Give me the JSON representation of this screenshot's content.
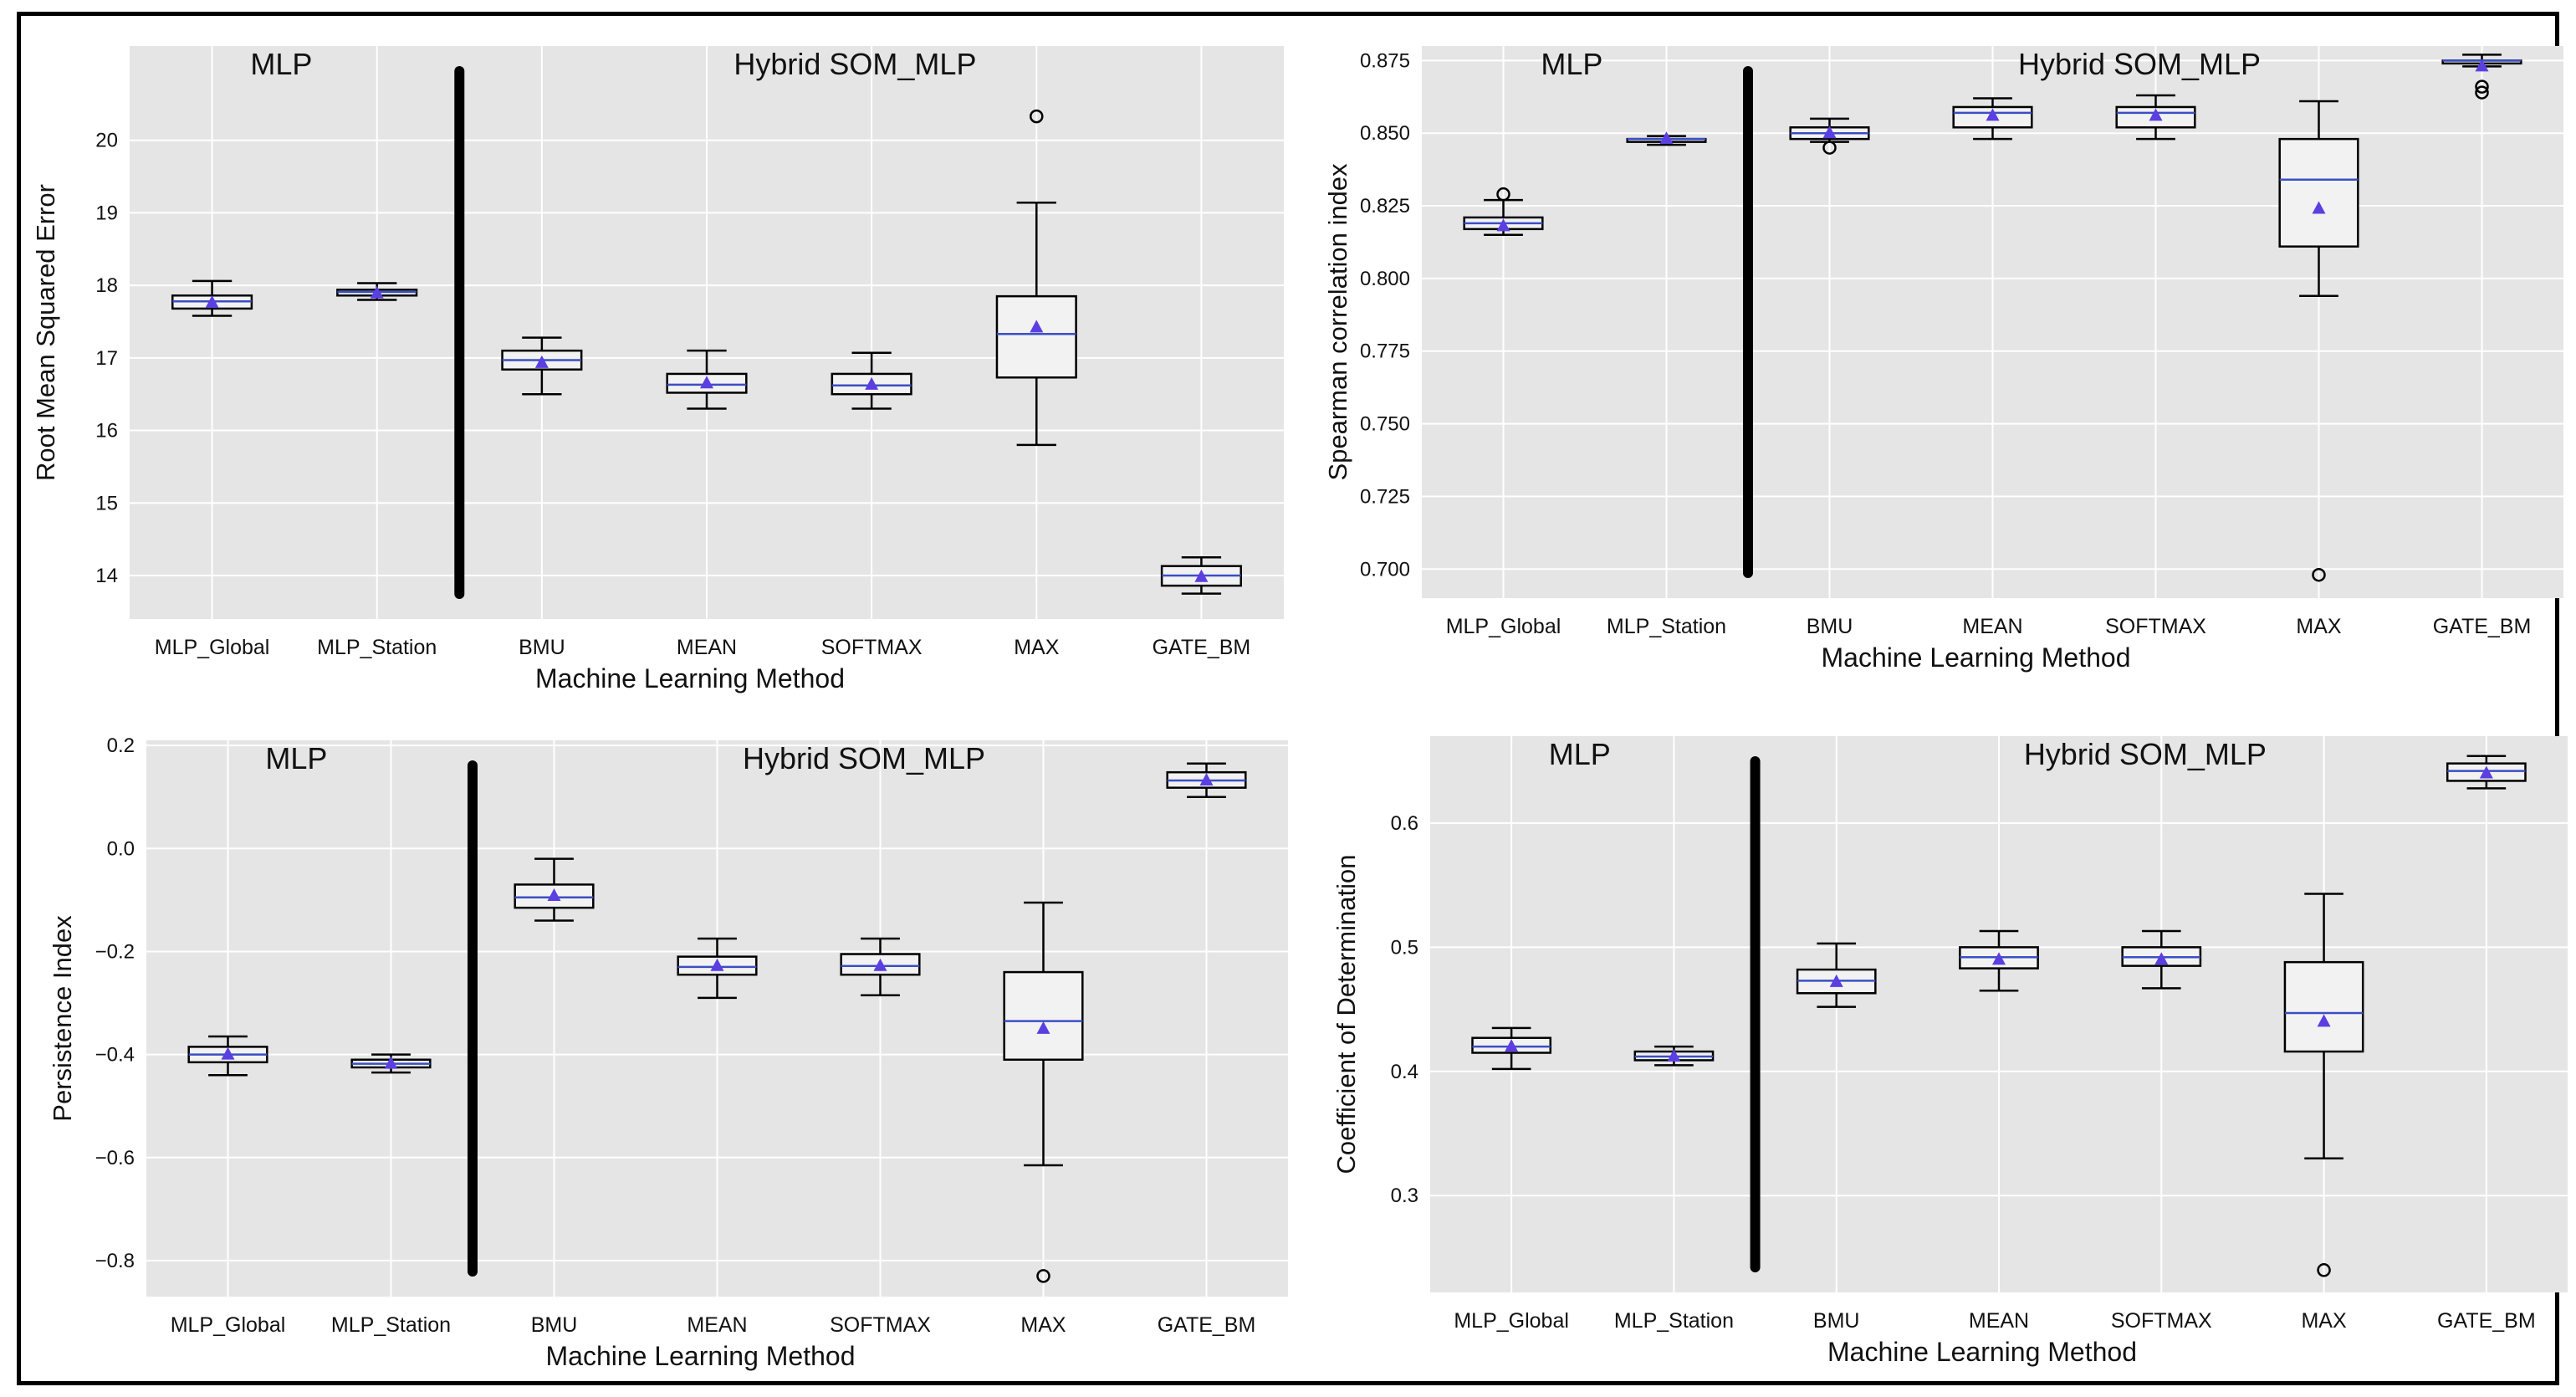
{
  "chart_data": [
    {
      "type": "box",
      "ylabel": "Root Mean Squared Error",
      "xlabel": "Machine Learning Method",
      "categories": [
        "MLP_Global",
        "MLP_Station",
        "BMU",
        "MEAN",
        "SOFTMAX",
        "MAX",
        "GATE_BM"
      ],
      "group_labels": [
        "MLP",
        "Hybrid SOM_MLP"
      ],
      "ylim": [
        13.4,
        21.3
      ],
      "yticks": [
        14,
        15,
        16,
        17,
        18,
        19,
        20
      ],
      "grid": true,
      "boxes": [
        {
          "whislo": 17.58,
          "q1": 17.68,
          "med": 17.78,
          "q3": 17.86,
          "whishi": 18.06,
          "mean": 17.76,
          "fliers": []
        },
        {
          "whislo": 17.8,
          "q1": 17.86,
          "med": 17.91,
          "q3": 17.94,
          "whishi": 18.03,
          "mean": 17.89,
          "fliers": []
        },
        {
          "whislo": 16.5,
          "q1": 16.84,
          "med": 16.97,
          "q3": 17.1,
          "whishi": 17.28,
          "mean": 16.93,
          "fliers": []
        },
        {
          "whislo": 16.3,
          "q1": 16.52,
          "med": 16.63,
          "q3": 16.78,
          "whishi": 17.1,
          "mean": 16.65,
          "fliers": []
        },
        {
          "whislo": 16.3,
          "q1": 16.5,
          "med": 16.62,
          "q3": 16.78,
          "whishi": 17.07,
          "mean": 16.63,
          "fliers": []
        },
        {
          "whislo": 15.8,
          "q1": 16.73,
          "med": 17.33,
          "q3": 17.85,
          "whishi": 19.14,
          "mean": 17.42,
          "fliers": [
            20.33
          ]
        },
        {
          "whislo": 13.75,
          "q1": 13.86,
          "med": 14.0,
          "q3": 14.13,
          "whishi": 14.25,
          "mean": 13.98,
          "fliers": []
        }
      ]
    },
    {
      "type": "box",
      "ylabel": "Spearman correlation index",
      "xlabel": "Machine Learning Method",
      "categories": [
        "MLP_Global",
        "MLP_Station",
        "BMU",
        "MEAN",
        "SOFTMAX",
        "MAX",
        "GATE_BM"
      ],
      "group_labels": [
        "MLP",
        "Hybrid SOM_MLP"
      ],
      "ylim": [
        0.69,
        0.88
      ],
      "yticks": [
        0.7,
        0.725,
        0.75,
        0.775,
        0.8,
        0.825,
        0.85,
        0.875
      ],
      "ytick_labels": [
        "0.700",
        "0.725",
        "0.750",
        "0.775",
        "0.800",
        "0.825",
        "0.850",
        "0.875"
      ],
      "grid": true,
      "boxes": [
        {
          "whislo": 0.815,
          "q1": 0.817,
          "med": 0.819,
          "q3": 0.821,
          "whishi": 0.827,
          "mean": 0.818,
          "fliers": [
            0.829
          ]
        },
        {
          "whislo": 0.846,
          "q1": 0.847,
          "med": 0.848,
          "q3": 0.848,
          "whishi": 0.849,
          "mean": 0.848,
          "fliers": []
        },
        {
          "whislo": 0.847,
          "q1": 0.848,
          "med": 0.85,
          "q3": 0.852,
          "whishi": 0.855,
          "mean": 0.85,
          "fliers": [
            0.845
          ]
        },
        {
          "whislo": 0.848,
          "q1": 0.852,
          "med": 0.857,
          "q3": 0.859,
          "whishi": 0.862,
          "mean": 0.856,
          "fliers": []
        },
        {
          "whislo": 0.848,
          "q1": 0.852,
          "med": 0.857,
          "q3": 0.859,
          "whishi": 0.863,
          "mean": 0.856,
          "fliers": []
        },
        {
          "whislo": 0.794,
          "q1": 0.811,
          "med": 0.834,
          "q3": 0.848,
          "whishi": 0.861,
          "mean": 0.824,
          "fliers": [
            0.698
          ]
        },
        {
          "whislo": 0.873,
          "q1": 0.874,
          "med": 0.875,
          "q3": 0.875,
          "whishi": 0.877,
          "mean": 0.873,
          "fliers": [
            0.866,
            0.864
          ]
        }
      ]
    },
    {
      "type": "box",
      "ylabel": "Persistence Index",
      "xlabel": "Machine Learning Method",
      "categories": [
        "MLP_Global",
        "MLP_Station",
        "BMU",
        "MEAN",
        "SOFTMAX",
        "MAX",
        "GATE_BM"
      ],
      "group_labels": [
        "MLP",
        "Hybrid SOM_MLP"
      ],
      "ylim": [
        -0.87,
        0.21
      ],
      "yticks": [
        -0.8,
        -0.6,
        -0.4,
        -0.2,
        0.0,
        0.2
      ],
      "ytick_labels": [
        "−0.8",
        "−0.6",
        "−0.4",
        "−0.2",
        "0.0",
        "0.2"
      ],
      "grid": true,
      "boxes": [
        {
          "whislo": -0.44,
          "q1": -0.415,
          "med": -0.4,
          "q3": -0.385,
          "whishi": -0.365,
          "mean": -0.4,
          "fliers": []
        },
        {
          "whislo": -0.435,
          "q1": -0.425,
          "med": -0.418,
          "q3": -0.41,
          "whishi": -0.4,
          "mean": -0.418,
          "fliers": []
        },
        {
          "whislo": -0.14,
          "q1": -0.115,
          "med": -0.095,
          "q3": -0.07,
          "whishi": -0.02,
          "mean": -0.092,
          "fliers": []
        },
        {
          "whislo": -0.29,
          "q1": -0.245,
          "med": -0.23,
          "q3": -0.21,
          "whishi": -0.175,
          "mean": -0.228,
          "fliers": []
        },
        {
          "whislo": -0.285,
          "q1": -0.245,
          "med": -0.228,
          "q3": -0.205,
          "whishi": -0.175,
          "mean": -0.228,
          "fliers": []
        },
        {
          "whislo": -0.615,
          "q1": -0.41,
          "med": -0.335,
          "q3": -0.24,
          "whishi": -0.105,
          "mean": -0.35,
          "fliers": [
            -0.83
          ]
        },
        {
          "whislo": 0.1,
          "q1": 0.118,
          "med": 0.132,
          "q3": 0.148,
          "whishi": 0.165,
          "mean": 0.132,
          "fliers": []
        }
      ]
    },
    {
      "type": "box",
      "ylabel": "Coefficient of Determination",
      "xlabel": "Machine Learning Method",
      "categories": [
        "MLP_Global",
        "MLP_Station",
        "BMU",
        "MEAN",
        "SOFTMAX",
        "MAX",
        "GATE_BM"
      ],
      "group_labels": [
        "MLP",
        "Hybrid SOM_MLP"
      ],
      "ylim": [
        0.222,
        0.67
      ],
      "yticks": [
        0.3,
        0.4,
        0.5,
        0.6
      ],
      "grid": true,
      "boxes": [
        {
          "whislo": 0.402,
          "q1": 0.415,
          "med": 0.42,
          "q3": 0.427,
          "whishi": 0.435,
          "mean": 0.42,
          "fliers": []
        },
        {
          "whislo": 0.405,
          "q1": 0.409,
          "med": 0.412,
          "q3": 0.416,
          "whishi": 0.42,
          "mean": 0.412,
          "fliers": []
        },
        {
          "whislo": 0.452,
          "q1": 0.463,
          "med": 0.473,
          "q3": 0.482,
          "whishi": 0.503,
          "mean": 0.472,
          "fliers": []
        },
        {
          "whislo": 0.465,
          "q1": 0.483,
          "med": 0.492,
          "q3": 0.5,
          "whishi": 0.513,
          "mean": 0.49,
          "fliers": []
        },
        {
          "whislo": 0.467,
          "q1": 0.485,
          "med": 0.492,
          "q3": 0.5,
          "whishi": 0.513,
          "mean": 0.49,
          "fliers": []
        },
        {
          "whislo": 0.33,
          "q1": 0.416,
          "med": 0.447,
          "q3": 0.488,
          "whishi": 0.543,
          "mean": 0.44,
          "fliers": [
            0.24
          ]
        },
        {
          "whislo": 0.628,
          "q1": 0.634,
          "med": 0.642,
          "q3": 0.648,
          "whishi": 0.654,
          "mean": 0.64,
          "fliers": []
        }
      ]
    }
  ],
  "colors": {
    "plot_bg": "#e5e5e5",
    "grid": "#ffffff",
    "median": "#3a4fc4",
    "mean_marker": "#5b3fe0",
    "box_edge": "#000000",
    "divider": "#000000"
  }
}
